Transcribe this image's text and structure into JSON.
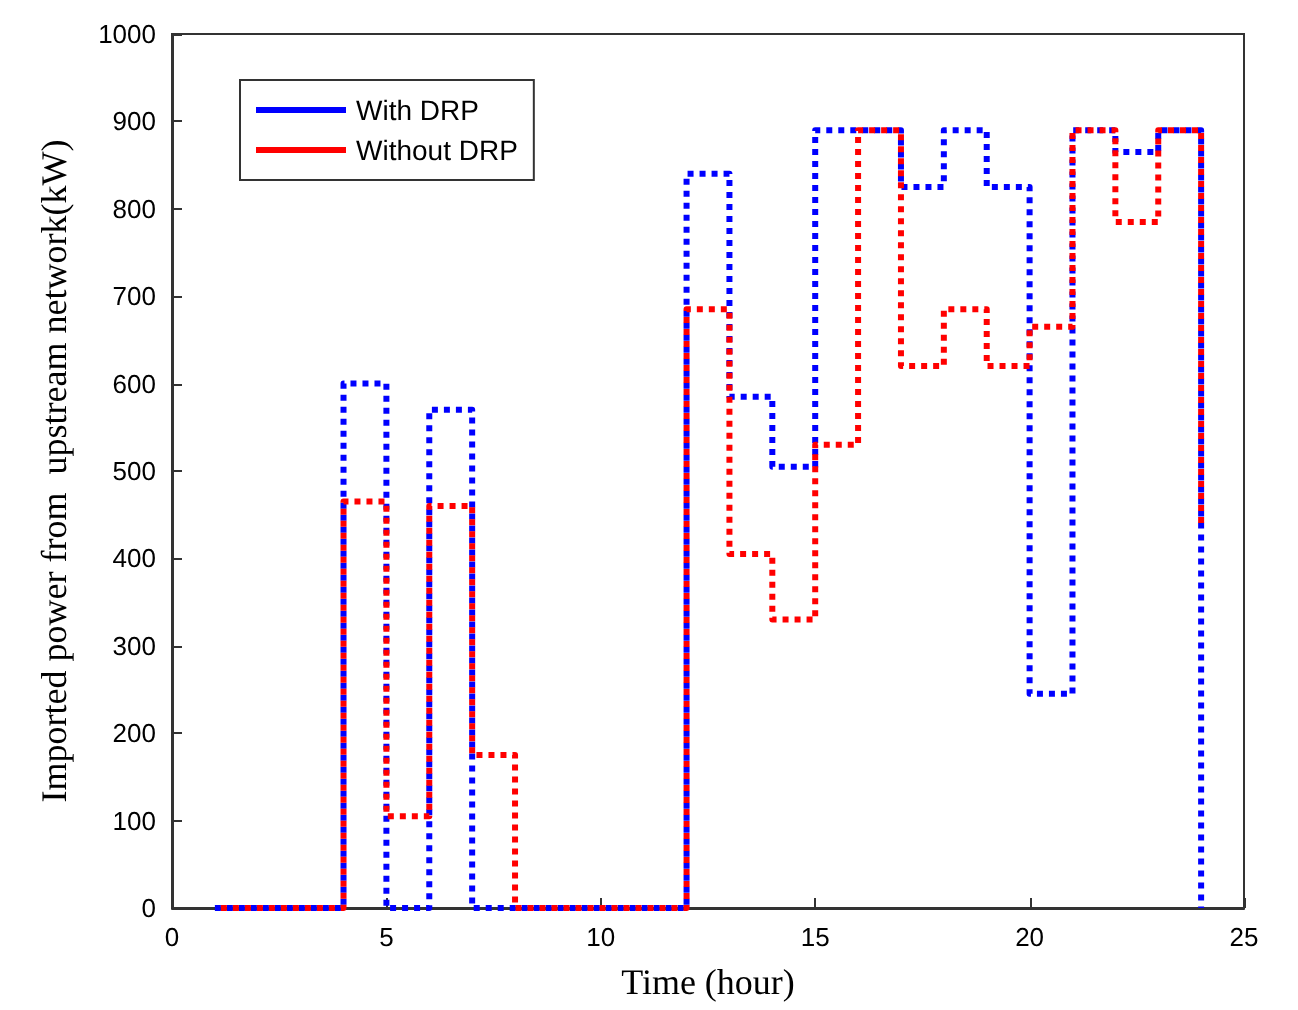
{
  "chart_data": {
    "type": "step",
    "xlabel": "Time (hour)",
    "ylabel": "Imported power from  upstream network(kW)",
    "x": [
      1,
      2,
      3,
      4,
      5,
      6,
      7,
      8,
      9,
      10,
      11,
      12,
      13,
      14,
      15,
      16,
      17,
      18,
      19,
      20,
      21,
      22,
      23,
      24
    ],
    "series": [
      {
        "name": "With DRP",
        "color": "#0000ff",
        "values": [
          0,
          0,
          0,
          600,
          0,
          570,
          0,
          0,
          0,
          0,
          0,
          840,
          585,
          505,
          890,
          890,
          825,
          890,
          825,
          245,
          890,
          865,
          890,
          0
        ]
      },
      {
        "name": "Without DRP",
        "color": "#ff0000",
        "values": [
          0,
          0,
          0,
          465,
          105,
          460,
          175,
          0,
          0,
          0,
          0,
          685,
          405,
          330,
          530,
          890,
          620,
          685,
          620,
          665,
          890,
          785,
          890,
          440
        ]
      }
    ],
    "xlim": [
      0,
      25
    ],
    "xticks": [
      0,
      5,
      10,
      15,
      20,
      25
    ],
    "ylim": [
      0,
      1000
    ],
    "yticks": [
      0,
      100,
      200,
      300,
      400,
      500,
      600,
      700,
      800,
      900,
      1000
    ],
    "grid": false,
    "legend": "top left",
    "marker": "none",
    "line_style": "dotted"
  }
}
